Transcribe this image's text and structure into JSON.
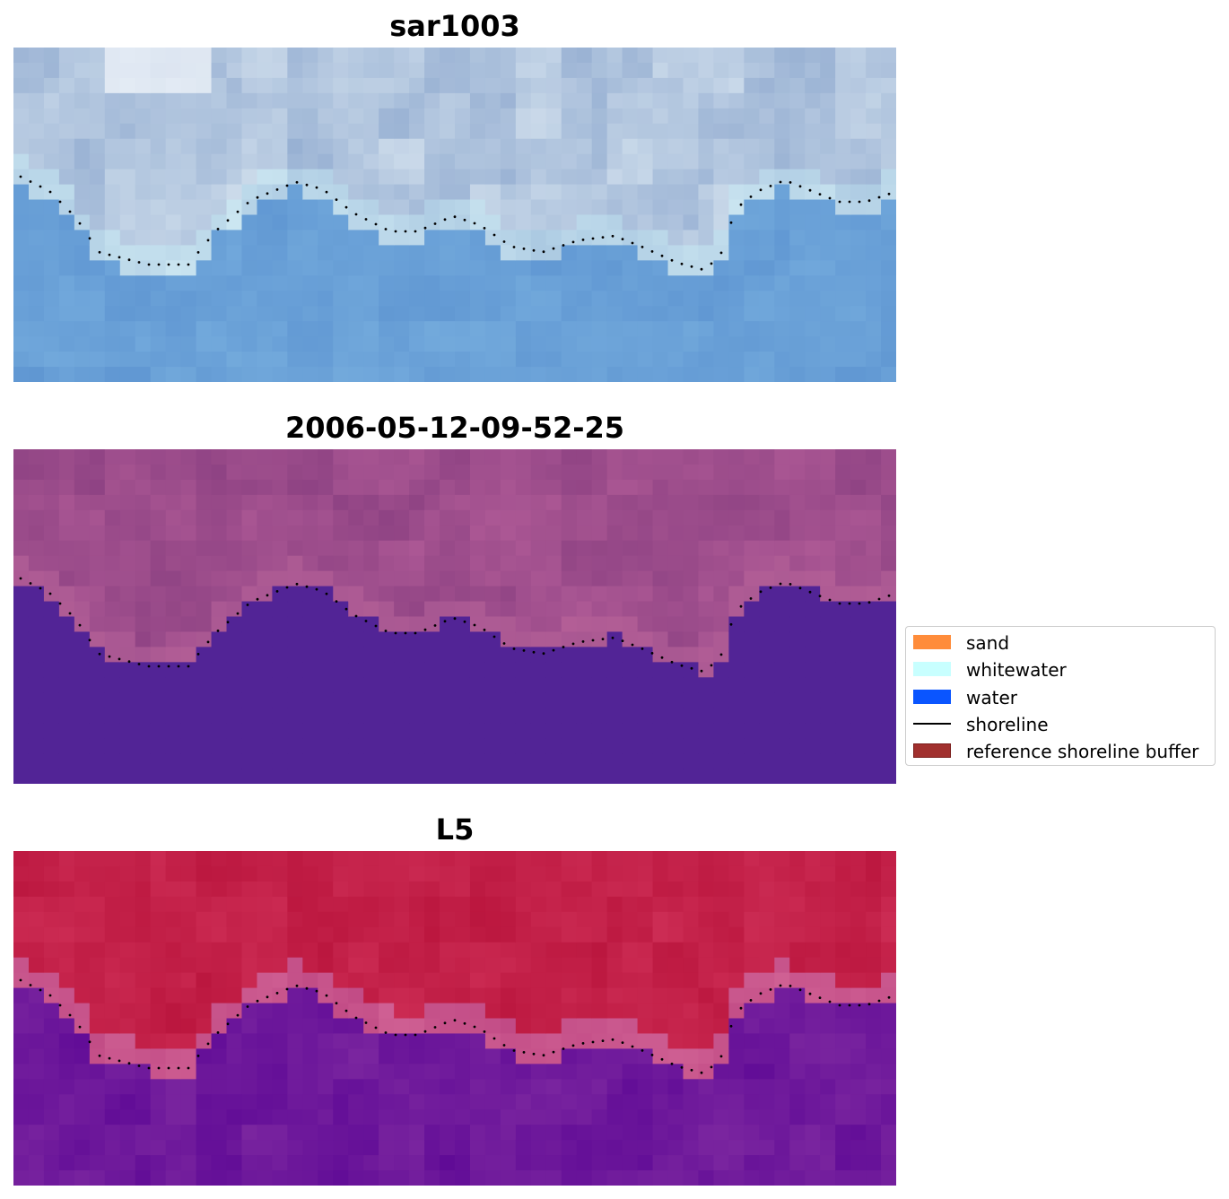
{
  "panels": [
    {
      "title": "sar1003",
      "style": "sar"
    },
    {
      "title": "2006-05-12-09-52-25",
      "style": "classified"
    },
    {
      "title": "L5",
      "style": "index"
    }
  ],
  "legend": {
    "items": [
      {
        "label": "sand",
        "color": "#ff8c3a",
        "kind": "patch"
      },
      {
        "label": "whitewater",
        "color": "#c8ffff",
        "kind": "patch"
      },
      {
        "label": "water",
        "color": "#0a55ff",
        "kind": "patch"
      },
      {
        "label": "shoreline",
        "color": "#000000",
        "kind": "line"
      },
      {
        "label": "reference shoreline buffer",
        "color": "#a1302e",
        "kind": "patch"
      }
    ]
  }
}
